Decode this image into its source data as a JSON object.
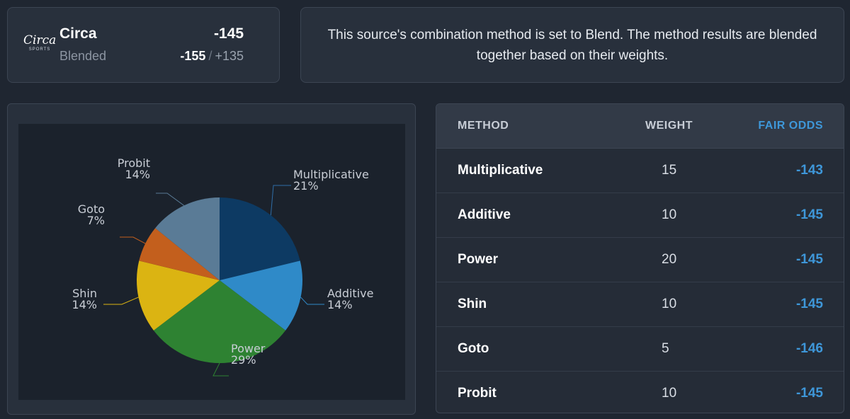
{
  "source": {
    "logo_text": "Circa",
    "logo_sub": "SPORTS",
    "name": "Circa",
    "odds": "-145",
    "method": "Blended",
    "blend_odds_a": "-155",
    "blend_separator": "/",
    "blend_odds_b": "+135"
  },
  "info": {
    "text": "This source's combination method is set to Blend. The method results are blended together based on their weights."
  },
  "chart_data": {
    "type": "pie",
    "title": "",
    "slices": [
      {
        "label": "Multiplicative",
        "value": 21,
        "display": "21%",
        "color": "#0d3a63"
      },
      {
        "label": "Additive",
        "value": 14,
        "display": "14%",
        "color": "#2f8ac8"
      },
      {
        "label": "Power",
        "value": 29,
        "display": "29%",
        "color": "#2e8232"
      },
      {
        "label": "Shin",
        "value": 14,
        "display": "14%",
        "color": "#dbb412"
      },
      {
        "label": "Goto",
        "value": 7,
        "display": "7%",
        "color": "#c35f1d"
      },
      {
        "label": "Probit",
        "value": 14,
        "display": "14%",
        "color": "#5a7b96"
      }
    ],
    "legend": "none"
  },
  "table": {
    "headers": {
      "method": "METHOD",
      "weight": "WEIGHT",
      "fair_odds": "FAIR ODDS"
    },
    "rows": [
      {
        "method": "Multiplicative",
        "weight": "15",
        "fair_odds": "-143"
      },
      {
        "method": "Additive",
        "weight": "10",
        "fair_odds": "-145"
      },
      {
        "method": "Power",
        "weight": "20",
        "fair_odds": "-145"
      },
      {
        "method": "Shin",
        "weight": "10",
        "fair_odds": "-145"
      },
      {
        "method": "Goto",
        "weight": "5",
        "fair_odds": "-146"
      },
      {
        "method": "Probit",
        "weight": "10",
        "fair_odds": "-145"
      }
    ]
  },
  "colors": {
    "accent": "#3e97d9",
    "background": "#1f2631",
    "card": "#28303c"
  }
}
